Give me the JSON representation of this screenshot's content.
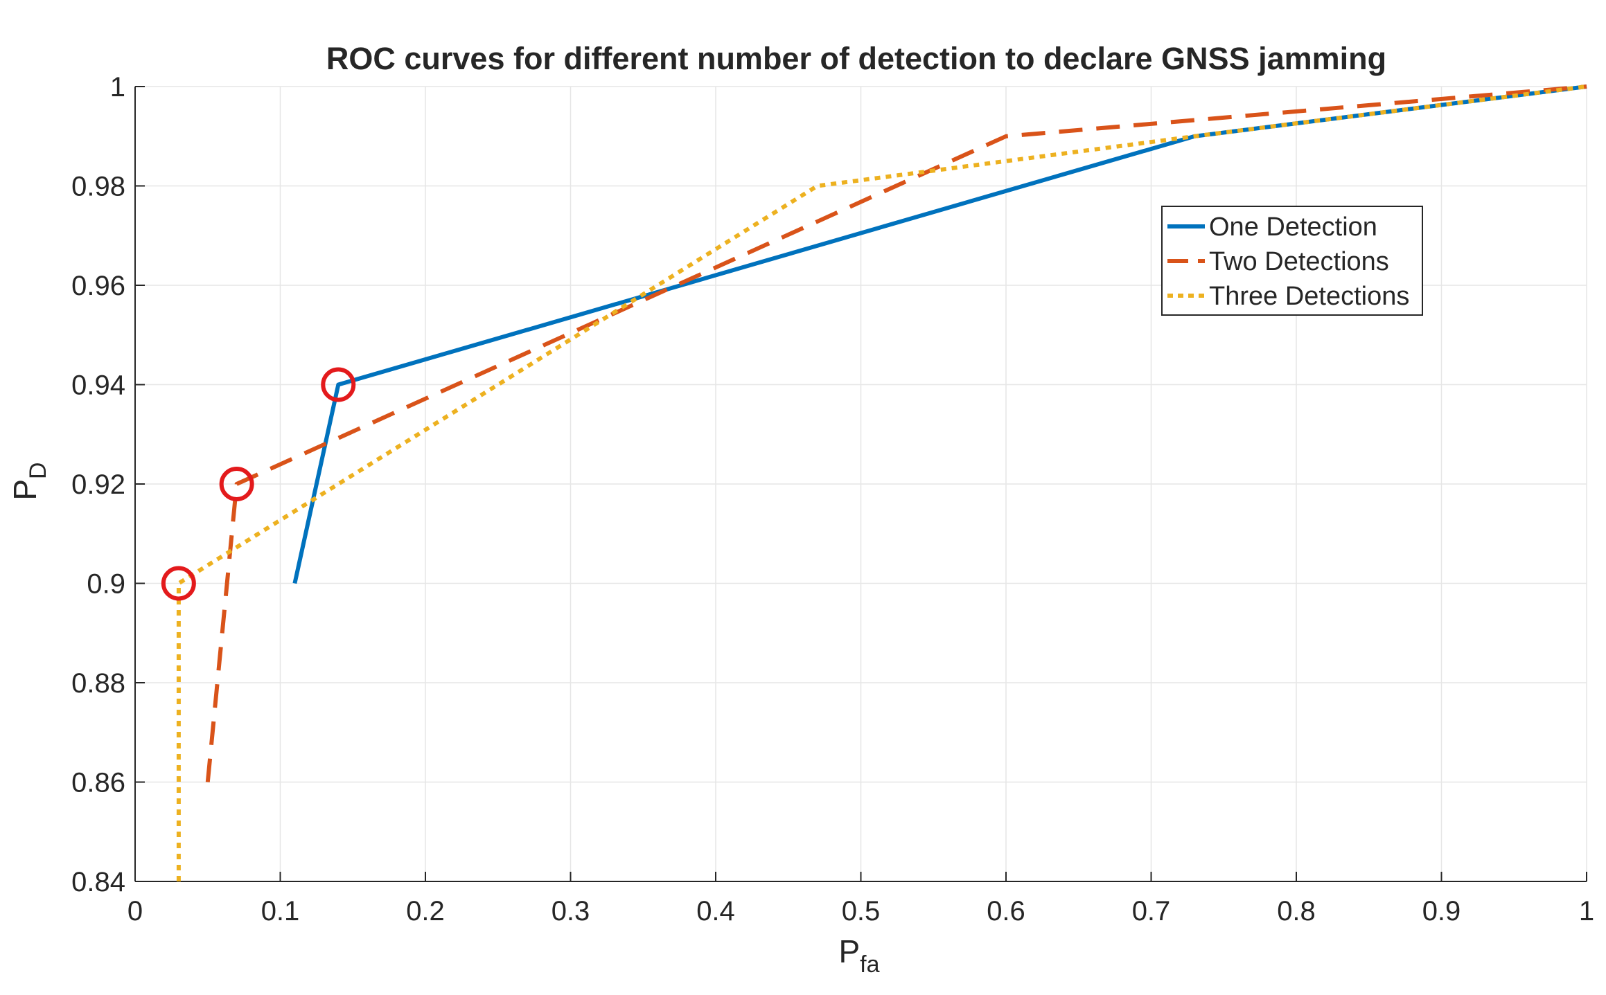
{
  "chart_data": {
    "type": "line",
    "title": "ROC curves for different number of detection to declare GNSS jamming",
    "xlabel": {
      "main": "P",
      "sub": "fa"
    },
    "ylabel": {
      "main": "P",
      "sub": "D"
    },
    "xlim": [
      0,
      1
    ],
    "ylim": [
      0.84,
      1
    ],
    "grid": true,
    "legend_location": "upper-right",
    "x_ticks": [
      0,
      0.1,
      0.2,
      0.3,
      0.4,
      0.5,
      0.6,
      0.7,
      0.8,
      0.9,
      1
    ],
    "x_tick_labels": [
      "0",
      "0.1",
      "0.2",
      "0.3",
      "0.4",
      "0.5",
      "0.6",
      "0.7",
      "0.8",
      "0.9",
      "1"
    ],
    "y_ticks": [
      0.84,
      0.86,
      0.88,
      0.9,
      0.92,
      0.94,
      0.96,
      0.98,
      1
    ],
    "y_tick_labels": [
      "0.84",
      "0.86",
      "0.88",
      "0.9",
      "0.92",
      "0.94",
      "0.96",
      "0.98",
      "1"
    ],
    "series": [
      {
        "name": "One Detection",
        "color": "#0072BD",
        "style": "solid",
        "x": [
          0.11,
          0.14,
          0.73,
          1.0
        ],
        "y": [
          0.9,
          0.94,
          0.99,
          1.0
        ]
      },
      {
        "name": "Two Detections",
        "color": "#D95319",
        "style": "dashed",
        "x": [
          0.05,
          0.07,
          0.6,
          1.0
        ],
        "y": [
          0.86,
          0.92,
          0.99,
          1.0
        ]
      },
      {
        "name": "Three Detections",
        "color": "#EDB120",
        "style": "dotted",
        "x": [
          0.03,
          0.03,
          0.47,
          0.73,
          1.0
        ],
        "y": [
          0.84,
          0.9,
          0.98,
          0.99,
          1.0
        ]
      }
    ],
    "markers": [
      {
        "x": 0.14,
        "y": 0.94,
        "color": "#E31A1C"
      },
      {
        "x": 0.07,
        "y": 0.92,
        "color": "#E31A1C"
      },
      {
        "x": 0.03,
        "y": 0.9,
        "color": "#E31A1C"
      }
    ]
  }
}
